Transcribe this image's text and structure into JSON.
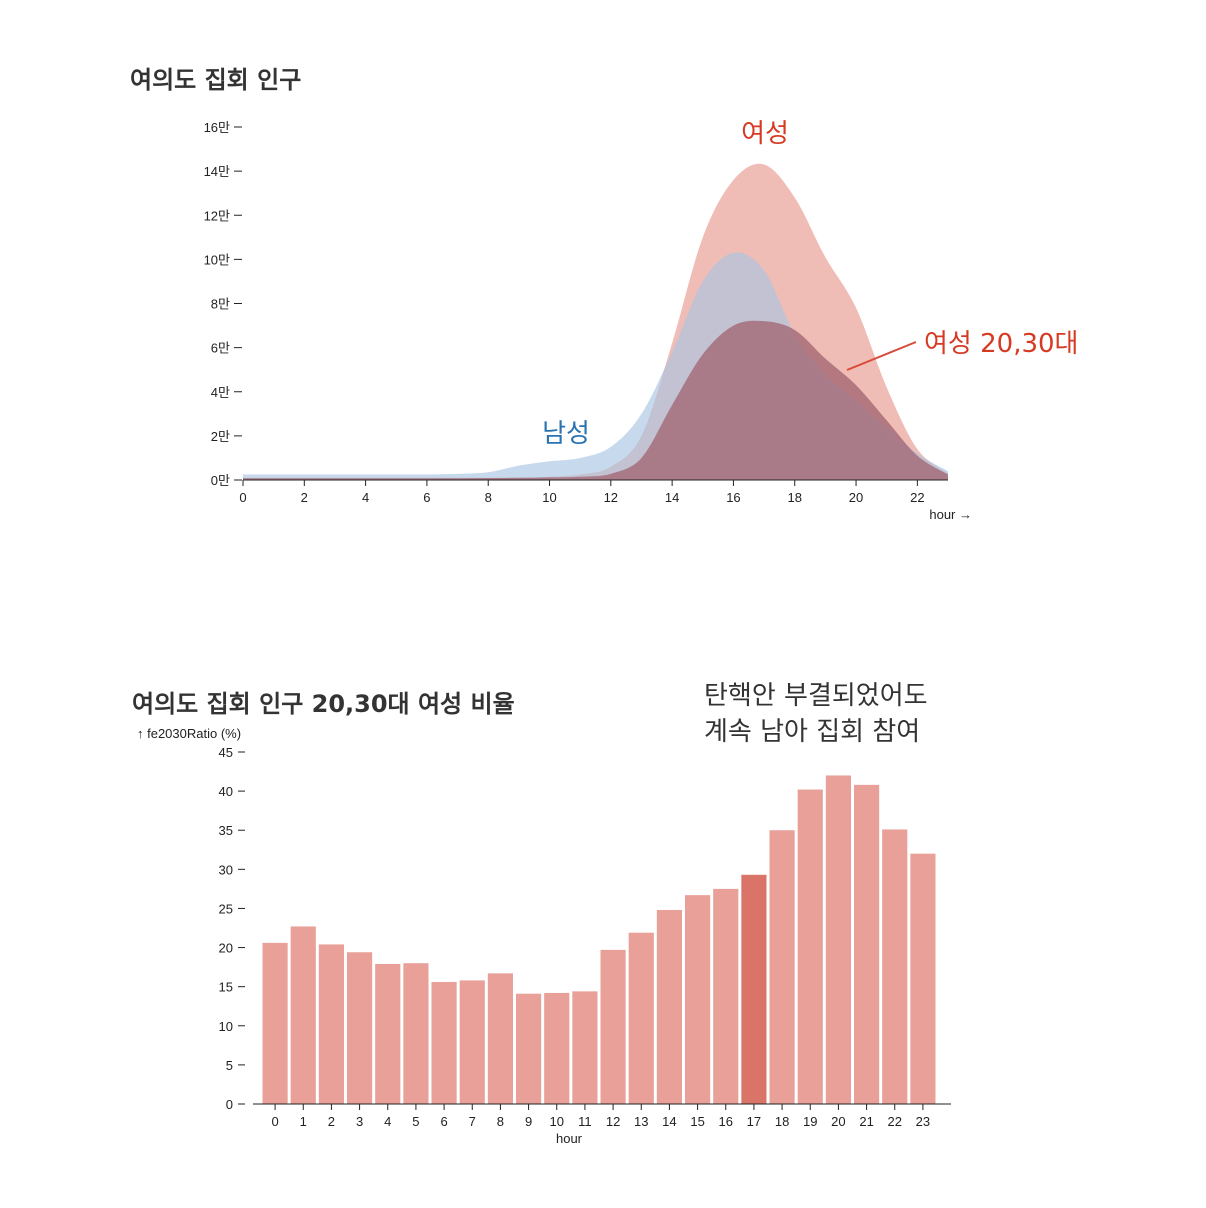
{
  "chart_data": [
    {
      "type": "area",
      "title": "여의도 집회 인구",
      "xlabel": "hour →",
      "ylabel": "",
      "xlim": [
        0,
        23
      ],
      "ylim": [
        0,
        160000
      ],
      "x_ticks": [
        0,
        2,
        4,
        6,
        8,
        10,
        12,
        14,
        16,
        18,
        20,
        22
      ],
      "y_ticks": [
        {
          "value": 0,
          "label": "0만"
        },
        {
          "value": 20000,
          "label": "2만"
        },
        {
          "value": 40000,
          "label": "4만"
        },
        {
          "value": 60000,
          "label": "6만"
        },
        {
          "value": 80000,
          "label": "8만"
        },
        {
          "value": 100000,
          "label": "10만"
        },
        {
          "value": 120000,
          "label": "12만"
        },
        {
          "value": 140000,
          "label": "14만"
        },
        {
          "value": 160000,
          "label": "16만"
        }
      ],
      "x": [
        0,
        1,
        2,
        3,
        4,
        5,
        6,
        7,
        8,
        9,
        10,
        11,
        12,
        13,
        14,
        15,
        16,
        17,
        18,
        19,
        20,
        21,
        22,
        23
      ],
      "series": [
        {
          "name": "여성",
          "color": "#e8998f",
          "values": [
            1000,
            1000,
            1000,
            1000,
            1000,
            1000,
            1000,
            1000,
            1000,
            1000,
            1500,
            2500,
            6000,
            20000,
            62000,
            110000,
            136000,
            143000,
            128000,
            101000,
            78000,
            42000,
            14000,
            3000
          ]
        },
        {
          "name": "남성",
          "color": "#a9c4e2",
          "values": [
            2500,
            2500,
            2500,
            2500,
            2500,
            2500,
            2500,
            2800,
            3500,
            6500,
            8500,
            10000,
            15000,
            30000,
            58000,
            90000,
            103000,
            95000,
            66000,
            48000,
            36000,
            24000,
            12000,
            4000
          ]
        },
        {
          "name": "여성 20,30대",
          "color": "#a0616e",
          "values": [
            800,
            800,
            800,
            800,
            800,
            800,
            800,
            800,
            900,
            1000,
            1200,
            1500,
            2800,
            10000,
            34000,
            57000,
            70000,
            72000,
            68000,
            55000,
            43000,
            27000,
            11000,
            2500
          ]
        }
      ]
    },
    {
      "type": "bar",
      "title": "여의도 집회 인구 20,30대 여성 비율",
      "xlabel": "hour",
      "ylabel": "↑ fe2030Ratio (%)",
      "ylim": [
        0,
        45
      ],
      "y_ticks": [
        0,
        5,
        10,
        15,
        20,
        25,
        30,
        35,
        40,
        45
      ],
      "categories": [
        "0",
        "1",
        "2",
        "3",
        "4",
        "5",
        "6",
        "7",
        "8",
        "9",
        "10",
        "11",
        "12",
        "13",
        "14",
        "15",
        "16",
        "17",
        "18",
        "19",
        "20",
        "21",
        "22",
        "23"
      ],
      "values": [
        20.6,
        22.7,
        20.4,
        19.4,
        17.9,
        18.0,
        15.6,
        15.8,
        16.7,
        14.1,
        14.2,
        14.4,
        19.7,
        21.9,
        24.8,
        26.7,
        27.5,
        29.3,
        35.0,
        40.2,
        42.0,
        40.8,
        35.1,
        32.0
      ],
      "highlight_category": "17",
      "colors": {
        "bar": "#e8a099",
        "highlight": "#db7468"
      }
    }
  ],
  "annotations": {
    "female_label": "여성",
    "male_label": "남성",
    "female2030_label": "여성 20,30대",
    "note_line1": "탄핵안 부결되었어도",
    "note_line2": "계속 남아 집회 참여"
  },
  "colors": {
    "female_text": "#d63a23",
    "male_text": "#2a73b1",
    "annot_line": "#d84a3a"
  }
}
